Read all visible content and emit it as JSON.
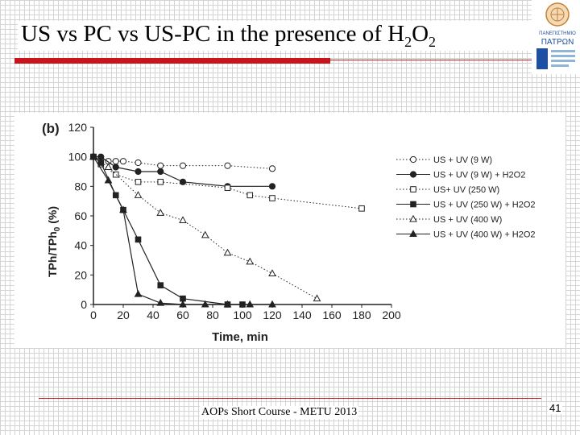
{
  "slide": {
    "title_main": "US vs PC vs US-PC in the presence of H",
    "title_sub1": "2",
    "title_o": "O",
    "title_sub2": "2",
    "footer": "AOPs Short Course - METU 2013",
    "page_number": "41",
    "logo_text_1": "ΠΑΝΕΠΙΣΤΗΜΙΟ",
    "logo_text_2": "ΠΑΤΡΩΝ",
    "accent_color": "#c8151b"
  },
  "chart_data": {
    "type": "line",
    "panel_label": "(b)",
    "xlabel": "Time, min",
    "ylabel": "TPh/TPh",
    "ylabel_sub": "0",
    "ylabel_unit": " (%)",
    "xlim": [
      0,
      200
    ],
    "ylim": [
      0,
      120
    ],
    "xticks": [
      0,
      20,
      40,
      60,
      80,
      100,
      120,
      140,
      160,
      180,
      200
    ],
    "yticks": [
      0,
      20,
      40,
      60,
      80,
      100,
      120
    ],
    "grid": false,
    "legend_position": "right",
    "series": [
      {
        "name": "US + UV (9 W)",
        "marker": "circle-open",
        "line": "dotted",
        "x": [
          0,
          5,
          10,
          15,
          20,
          30,
          45,
          60,
          90,
          120
        ],
        "y": [
          100,
          98,
          97,
          97,
          97,
          96,
          94,
          94,
          94,
          92
        ]
      },
      {
        "name": "US + UV (9 W) + H2O2",
        "marker": "circle-filled",
        "line": "solid",
        "x": [
          0,
          5,
          15,
          30,
          45,
          60,
          90,
          120
        ],
        "y": [
          100,
          100,
          93,
          90,
          90,
          83,
          80,
          80
        ]
      },
      {
        "name": "US+ UV (250 W)",
        "marker": "square-open",
        "line": "dotted",
        "x": [
          0,
          5,
          15,
          30,
          45,
          90,
          105,
          120,
          180
        ],
        "y": [
          100,
          95,
          88,
          83,
          83,
          79,
          74,
          72,
          65
        ]
      },
      {
        "name": "US + UV (250 W) + H2O2",
        "marker": "square-filled",
        "line": "solid",
        "x": [
          0,
          5,
          15,
          20,
          30,
          45,
          60,
          90,
          100
        ],
        "y": [
          100,
          96,
          74,
          64,
          44,
          13,
          4,
          0,
          0
        ]
      },
      {
        "name": "US + UV (400 W)",
        "marker": "triangle-open",
        "line": "dotted",
        "x": [
          0,
          10,
          30,
          45,
          60,
          75,
          90,
          105,
          120,
          150
        ],
        "y": [
          100,
          93,
          74,
          62,
          57,
          47,
          35,
          29,
          21,
          4
        ]
      },
      {
        "name": "US + UV (400 W) + H2O2",
        "marker": "triangle-filled",
        "line": "solid",
        "x": [
          0,
          10,
          20,
          30,
          45,
          60,
          75,
          90,
          105,
          120
        ],
        "y": [
          100,
          84,
          64,
          7,
          1,
          0,
          0,
          0,
          0,
          0
        ]
      }
    ]
  }
}
